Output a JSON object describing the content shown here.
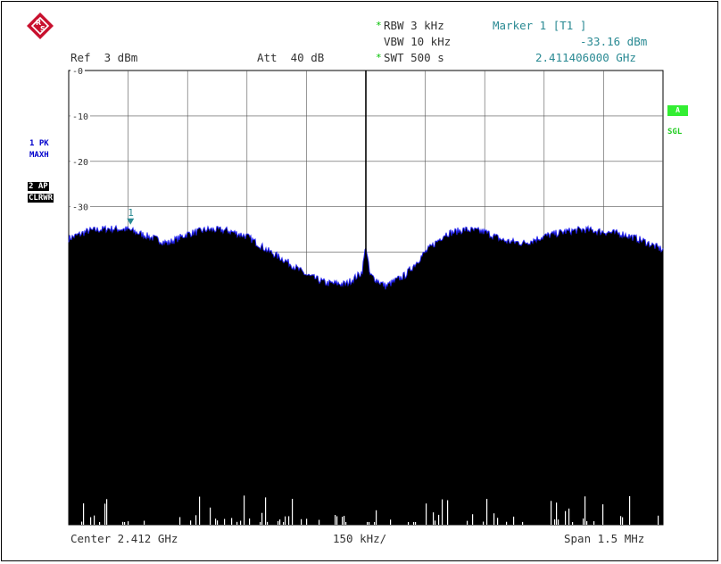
{
  "header": {
    "ref": "Ref  3 dBm",
    "att": "Att  40 dB",
    "rbw": "RBW 3 kHz",
    "vbw": "VBW 10 kHz",
    "swt": "SWT 500 s",
    "marker_title": "Marker 1 [T1 ]",
    "marker_level": "-33.16 dBm",
    "marker_freq": "2.411406000 GHz",
    "star": "*"
  },
  "side": {
    "trace1_line1": "1 PK",
    "trace1_line2": "MAXH",
    "trace2_line1": "2 AP",
    "trace2_line2": "CLRWR",
    "badge": "A",
    "sgl": "SGL"
  },
  "footer": {
    "center": "Center 2.412 GHz",
    "div": "150 kHz/",
    "span": "Span 1.5 MHz"
  },
  "colors": {
    "trace1": "#2222ee",
    "fill": "#000000",
    "marker": "#2a8a93",
    "badge": "#33ee33"
  },
  "chart_data": {
    "type": "area",
    "title": "",
    "xlabel": "",
    "ylabel": "",
    "x_unit": "GHz",
    "xlim": [
      2.41125,
      2.41275
    ],
    "ylim": [
      -100,
      0
    ],
    "y_ticks": [
      "-0",
      "-10",
      "-20",
      "-30"
    ],
    "grid": true,
    "x": [
      2.41125,
      2.4113,
      2.41135,
      2.4114,
      2.41145,
      2.4115,
      2.41155,
      2.4116,
      2.41165,
      2.4117,
      2.41175,
      2.4118,
      2.41185,
      2.4119,
      2.41195,
      2.41199,
      2.412,
      2.41201,
      2.41205,
      2.4121,
      2.41215,
      2.4122,
      2.41225,
      2.4123,
      2.41235,
      2.4124,
      2.41245,
      2.4125,
      2.41255,
      2.4126,
      2.41265,
      2.4127,
      2.41275
    ],
    "series": [
      {
        "values": [
          -37.0,
          -35.3,
          -34.8,
          -35.0,
          -36.5,
          -38.0,
          -36.0,
          -35.0,
          -35.2,
          -36.5,
          -39.5,
          -42.0,
          -45.0,
          -46.8,
          -47.0,
          -44.5,
          -38.5,
          -45.0,
          -47.5,
          -45.0,
          -40.0,
          -36.0,
          -35.0,
          -35.5,
          -37.5,
          -38.0,
          -36.5,
          -35.5,
          -35.0,
          -35.5,
          -36.0,
          -37.5,
          -39.5
        ]
      }
    ],
    "marker": {
      "label": "1",
      "x": 2.411406,
      "y": -33.16
    }
  }
}
